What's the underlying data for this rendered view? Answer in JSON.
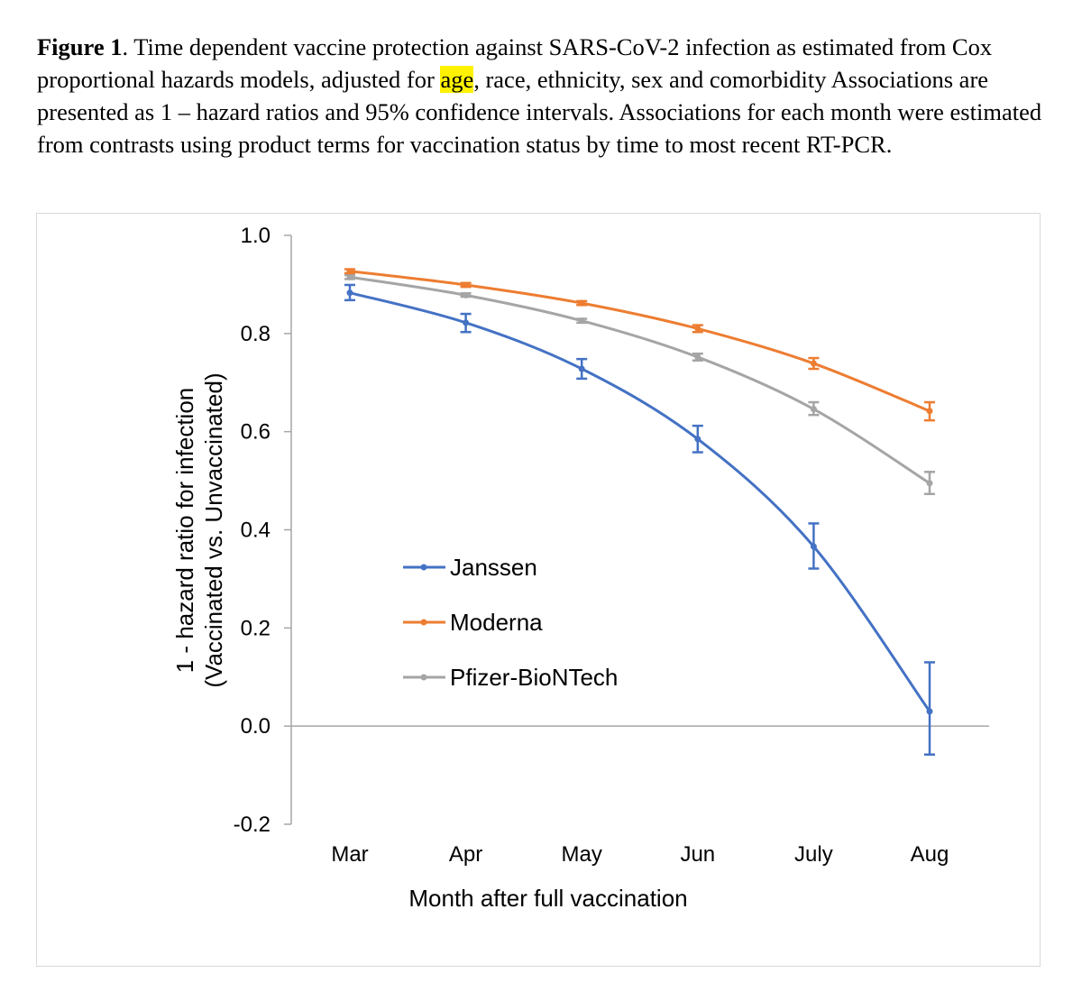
{
  "caption": {
    "figure_label": "Figure 1",
    "text_before_highlight": ". Time dependent vaccine protection against SARS-CoV-2 infection as estimated from Cox proportional hazards models, adjusted for ",
    "highlighted_word": "age",
    "text_after_highlight": ", race, ethnicity, sex and comorbidity Associations are presented as 1 – hazard ratios and 95% confidence intervals. Associations for each month were estimated from contrasts using product terms for vaccination status by time to most recent RT-PCR."
  },
  "colors": {
    "janssen": "#4472c4",
    "moderna": "#ed7d31",
    "pfizer": "#a5a5a5",
    "highlight": "#fff200",
    "axis": "#a6a6a6"
  },
  "chart_data": {
    "type": "line",
    "title": "",
    "xlabel": "Month after full vaccination",
    "ylabel_line1": "1 - hazard ratio for infection",
    "ylabel_line2": "(Vaccinated vs. Unvaccinated)",
    "categories": [
      "Mar",
      "Apr",
      "May",
      "Jun",
      "July",
      "Aug"
    ],
    "ylim": [
      -0.2,
      1.0
    ],
    "yticks": [
      "1.0",
      "0.8",
      "0.6",
      "0.4",
      "0.2",
      "0.0",
      "-0.2"
    ],
    "grid": false,
    "legend_position": "lower-left",
    "series": [
      {
        "name": "Janssen",
        "values": [
          0.883,
          0.822,
          0.728,
          0.585,
          0.366,
          0.03
        ],
        "ci_low": [
          0.868,
          0.803,
          0.708,
          0.558,
          0.321,
          -0.058
        ],
        "ci_high": [
          0.899,
          0.84,
          0.748,
          0.612,
          0.413,
          0.13
        ]
      },
      {
        "name": "Moderna",
        "values": [
          0.927,
          0.899,
          0.862,
          0.81,
          0.739,
          0.642
        ],
        "ci_low": [
          0.923,
          0.895,
          0.858,
          0.803,
          0.728,
          0.623
        ],
        "ci_high": [
          0.931,
          0.903,
          0.866,
          0.817,
          0.75,
          0.66
        ]
      },
      {
        "name": "Pfizer-BioNTech",
        "values": [
          0.915,
          0.878,
          0.826,
          0.752,
          0.646,
          0.495
        ],
        "ci_low": [
          0.911,
          0.875,
          0.822,
          0.745,
          0.634,
          0.473
        ],
        "ci_high": [
          0.919,
          0.882,
          0.83,
          0.759,
          0.66,
          0.518
        ]
      }
    ]
  }
}
